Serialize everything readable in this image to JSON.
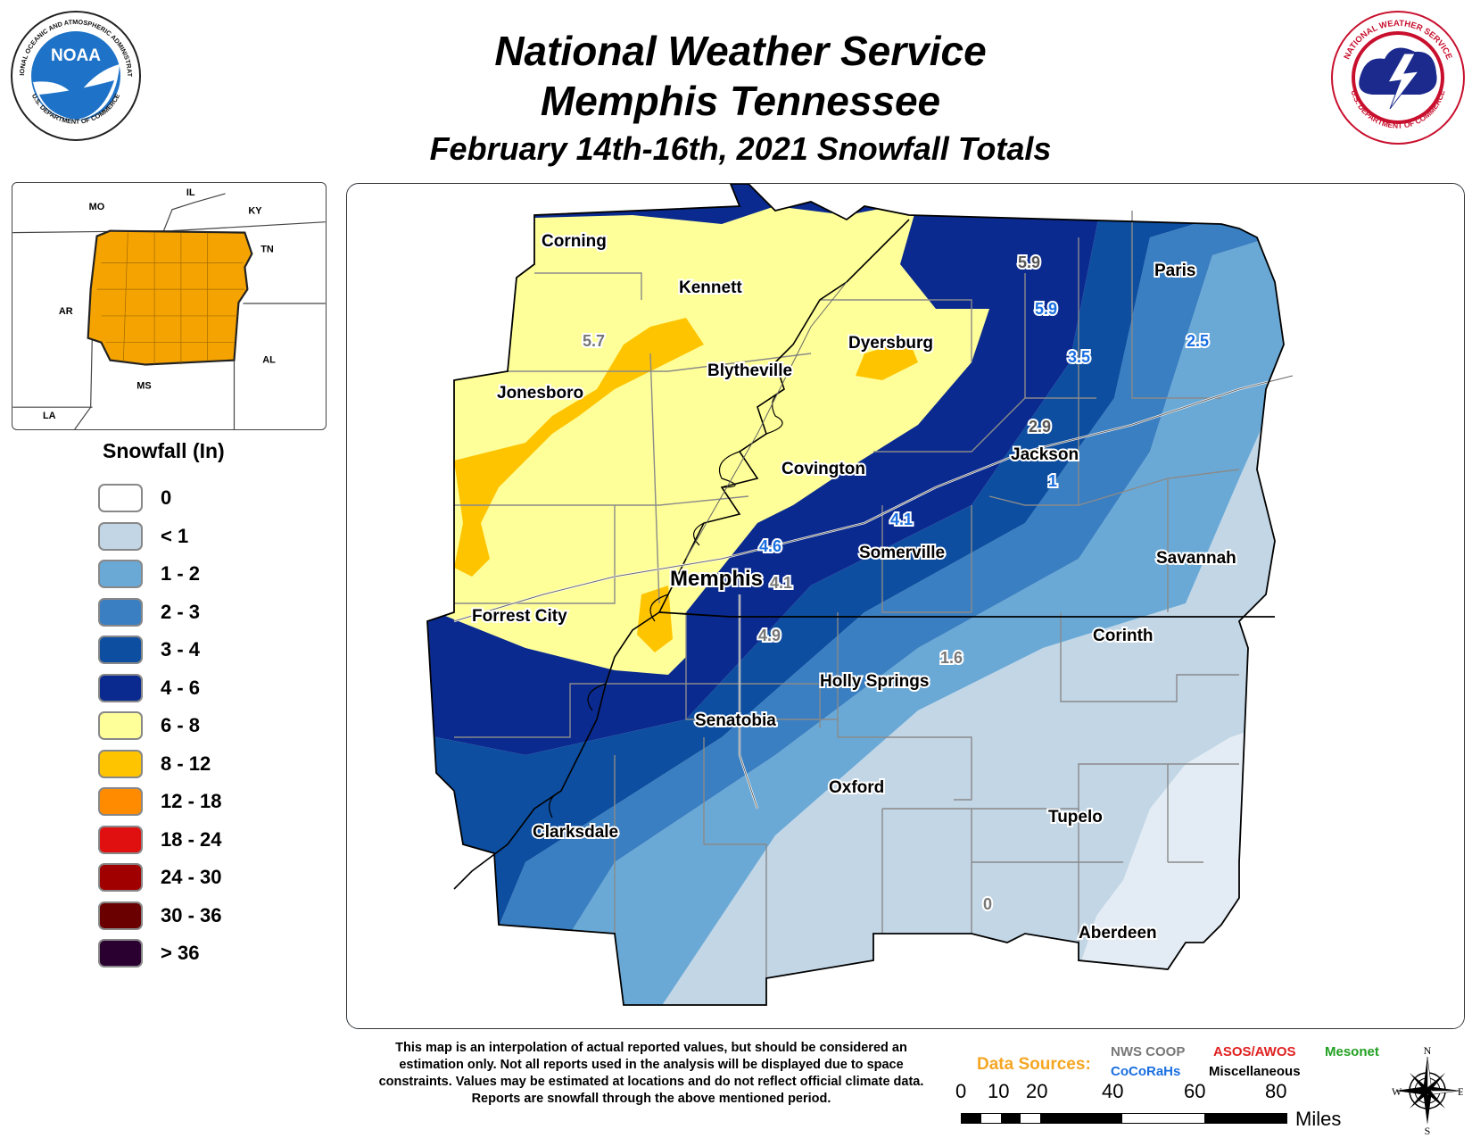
{
  "header": {
    "title_line1": "National Weather Service",
    "title_line2": "Memphis Tennessee",
    "title_line3": "February 14th-16th, 2021 Snowfall Totals"
  },
  "logos": {
    "noaa": {
      "icon": "noaa-logo-icon",
      "text": "NOAA",
      "ring_text": "NATIONAL OCEANIC AND ATMOSPHERIC ADMINISTRATION",
      "ring_text_bottom": "U.S. DEPARTMENT OF COMMERCE"
    },
    "nws": {
      "icon": "nws-logo-icon",
      "ring_text": "NATIONAL WEATHER SERVICE",
      "ring_text_bottom": "U.S. DEPARTMENT OF COMMERCE"
    }
  },
  "inset_map": {
    "highlight_color": "#f5a300",
    "state_labels": [
      "MO",
      "IL",
      "KY",
      "TN",
      "AR",
      "AL",
      "MS",
      "LA"
    ]
  },
  "legend": {
    "title": "Snowfall (In)",
    "items": [
      {
        "label": "0",
        "color": "#ffffff"
      },
      {
        "label": "< 1",
        "color": "#c2d6e6"
      },
      {
        "label": "1 - 2",
        "color": "#6aa9d6"
      },
      {
        "label": "2 - 3",
        "color": "#3a7fc2"
      },
      {
        "label": "3 - 4",
        "color": "#0d4ea0"
      },
      {
        "label": "4 - 6",
        "color": "#0a2a8f"
      },
      {
        "label": "6 - 8",
        "color": "#ffff99"
      },
      {
        "label": "8 - 12",
        "color": "#ffc400"
      },
      {
        "label": "12 - 18",
        "color": "#ff8c00"
      },
      {
        "label": "18 - 24",
        "color": "#e01010"
      },
      {
        "label": "24 - 30",
        "color": "#a00000"
      },
      {
        "label": "30 - 36",
        "color": "#6a0000"
      },
      {
        "label": "> 36",
        "color": "#2a0030"
      }
    ]
  },
  "map": {
    "cities": [
      "Corning",
      "Kennett",
      "Paris",
      "Dyersburg",
      "Blytheville",
      "Jonesboro",
      "Covington",
      "Jackson",
      "Somerville",
      "Savannah",
      "Memphis",
      "Forrest City",
      "Corinth",
      "Holly Springs",
      "Senatobia",
      "Oxford",
      "Clarksdale",
      "Tupelo",
      "Aberdeen"
    ],
    "observations": [
      {
        "value": "5.9",
        "color": "#555555"
      },
      {
        "value": "5.9",
        "color": "#1a6fe0"
      },
      {
        "value": "3.5",
        "color": "#1a6fe0"
      },
      {
        "value": "2.5",
        "color": "#1a6fe0"
      },
      {
        "value": "5.7",
        "color": "#777777"
      },
      {
        "value": "2.9",
        "color": "#555555"
      },
      {
        "value": "1",
        "color": "#1a6fe0"
      },
      {
        "value": "4.1",
        "color": "#1a6fe0"
      },
      {
        "value": "4.6",
        "color": "#1a6fe0"
      },
      {
        "value": "4.1",
        "color": "#777777"
      },
      {
        "value": "4.9",
        "color": "#777777"
      },
      {
        "value": "1.6",
        "color": "#777777"
      },
      {
        "value": "0",
        "color": "#777777"
      }
    ]
  },
  "footer": {
    "disclaimer": "This map is an interpolation of actual reported values, but should be considered an estimation only. Not all reports used in the analysis will be displayed due to space constraints. Values may be estimated at locations and do not reflect official climate data. Reports are snowfall through the above mentioned period.",
    "sources_title": "Data Sources:",
    "sources": [
      "NWS COOP",
      "ASOS/AWOS",
      "Mesonet",
      "CoCoRaHs",
      "Miscellaneous"
    ],
    "scale_ticks": [
      "0",
      "10",
      "20",
      "40",
      "60",
      "80"
    ],
    "scale_unit": "Miles",
    "compass": {
      "n": "N",
      "s": "S",
      "e": "E",
      "w": "W"
    }
  }
}
